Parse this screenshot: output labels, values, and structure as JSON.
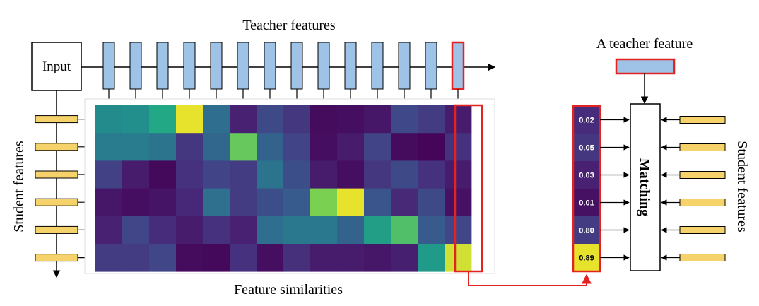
{
  "labels": {
    "teacher_features": "Teacher features",
    "input": "Input",
    "student_features_left": "Student features",
    "feature_similarities": "Feature similarities",
    "a_teacher_feature": "A teacher feature",
    "matching": "Matching",
    "student_features_right": "Student features"
  },
  "teacher_block_count": 14,
  "student_block_count": 6,
  "colors": {
    "teacher_block": "#9ec3e6",
    "student_block": "#f6d26b",
    "highlight": "#e32222",
    "line": "#000000"
  },
  "heatmap": {
    "colormap": "viridis",
    "values": [
      [
        0.6,
        0.62,
        0.75,
        0.98,
        0.45,
        0.12,
        0.28,
        0.2,
        0.04,
        0.05,
        0.08,
        0.27,
        0.22,
        0.1
      ],
      [
        0.52,
        0.52,
        0.48,
        0.2,
        0.42,
        0.85,
        0.4,
        0.25,
        0.05,
        0.1,
        0.25,
        0.04,
        0.02,
        0.18
      ],
      [
        0.24,
        0.1,
        0.03,
        0.18,
        0.25,
        0.22,
        0.48,
        0.3,
        0.1,
        0.05,
        0.2,
        0.28,
        0.18,
        0.1
      ],
      [
        0.08,
        0.05,
        0.07,
        0.14,
        0.46,
        0.22,
        0.3,
        0.36,
        0.88,
        0.98,
        0.33,
        0.15,
        0.28,
        0.06
      ],
      [
        0.12,
        0.26,
        0.16,
        0.1,
        0.18,
        0.12,
        0.45,
        0.5,
        0.5,
        0.4,
        0.7,
        0.82,
        0.36,
        0.26
      ],
      [
        0.22,
        0.22,
        0.26,
        0.04,
        0.03,
        0.18,
        0.05,
        0.17,
        0.1,
        0.1,
        0.08,
        0.11,
        0.68,
        0.96
      ]
    ]
  },
  "similarities": [
    "0.02",
    "0.05",
    "0.03",
    "0.01",
    "0.80",
    "0.89"
  ],
  "similarity_values": [
    0.16,
    0.2,
    0.12,
    0.06,
    0.22,
    0.98
  ]
}
